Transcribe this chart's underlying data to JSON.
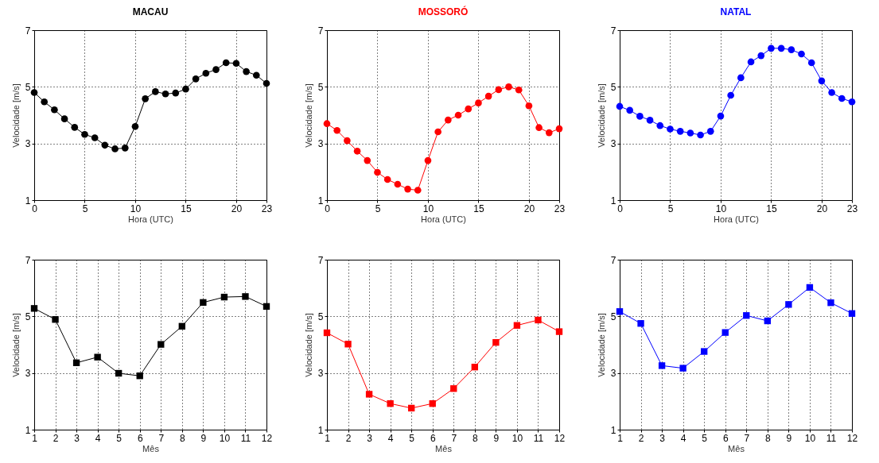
{
  "chart_data": [
    {
      "type": "line",
      "title": "MACAU",
      "xlabel": "Hora (UTC)",
      "ylabel": "Velocidade [m/s]",
      "x": [
        0,
        1,
        2,
        3,
        4,
        5,
        6,
        7,
        8,
        9,
        10,
        11,
        12,
        13,
        14,
        15,
        16,
        17,
        18,
        19,
        20,
        21,
        22,
        23
      ],
      "series": [
        {
          "color": "#000000",
          "values": [
            4.8,
            4.47,
            4.19,
            3.87,
            3.57,
            3.32,
            3.2,
            2.94,
            2.81,
            2.84,
            3.6,
            4.58,
            4.83,
            4.75,
            4.78,
            4.92,
            5.28,
            5.48,
            5.61,
            5.85,
            5.83,
            5.54,
            5.41,
            5.12
          ]
        }
      ],
      "xlim": [
        0,
        23
      ],
      "xticks": [
        0,
        5,
        10,
        15,
        20,
        23
      ],
      "ylim": [
        1,
        7
      ],
      "yticks": [
        1,
        3,
        5,
        7
      ],
      "grid": true,
      "marker": "circle"
    },
    {
      "type": "line",
      "title": "MOSSORÓ",
      "xlabel": "Hora (UTC)",
      "ylabel": "Velocidade [m/s]",
      "x": [
        0,
        1,
        2,
        3,
        4,
        5,
        6,
        7,
        8,
        9,
        10,
        11,
        12,
        13,
        14,
        15,
        16,
        17,
        18,
        19,
        20,
        21,
        22,
        23
      ],
      "series": [
        {
          "color": "#ff0000",
          "values": [
            3.7,
            3.46,
            3.1,
            2.73,
            2.4,
            1.98,
            1.73,
            1.56,
            1.39,
            1.35,
            2.4,
            3.41,
            3.83,
            4.0,
            4.22,
            4.43,
            4.67,
            4.9,
            5.0,
            4.89,
            4.33,
            3.56,
            3.38,
            3.52
          ]
        }
      ],
      "xlim": [
        0,
        23
      ],
      "xticks": [
        0,
        5,
        10,
        15,
        20,
        23
      ],
      "ylim": [
        1,
        7
      ],
      "yticks": [
        1,
        3,
        5,
        7
      ],
      "grid": true,
      "marker": "circle"
    },
    {
      "type": "line",
      "title": "NATAL",
      "xlabel": "Hora (UTC)",
      "ylabel": "Velocidade [m/s]",
      "x": [
        0,
        1,
        2,
        3,
        4,
        5,
        6,
        7,
        8,
        9,
        10,
        11,
        12,
        13,
        14,
        15,
        16,
        17,
        18,
        19,
        20,
        21,
        22,
        23
      ],
      "series": [
        {
          "color": "#0000ff",
          "values": [
            4.31,
            4.17,
            3.96,
            3.82,
            3.63,
            3.51,
            3.43,
            3.37,
            3.3,
            3.43,
            3.97,
            4.7,
            5.32,
            5.88,
            6.1,
            6.36,
            6.36,
            6.31,
            6.16,
            5.85,
            5.21,
            4.8,
            4.59,
            4.47
          ]
        }
      ],
      "xlim": [
        0,
        23
      ],
      "xticks": [
        0,
        5,
        10,
        15,
        20,
        23
      ],
      "ylim": [
        1,
        7
      ],
      "yticks": [
        1,
        3,
        5,
        7
      ],
      "grid": true,
      "marker": "circle"
    },
    {
      "type": "line",
      "xlabel": "Mês",
      "ylabel": "Velocidade [m/s]",
      "x": [
        1,
        2,
        3,
        4,
        5,
        6,
        7,
        8,
        9,
        10,
        11,
        12
      ],
      "series": [
        {
          "color": "#000000",
          "values": [
            5.28,
            4.89,
            3.36,
            3.56,
            2.99,
            2.9,
            4.01,
            4.65,
            5.49,
            5.68,
            5.7,
            5.35
          ]
        }
      ],
      "xlim": [
        1,
        12
      ],
      "xticks": [
        1,
        2,
        3,
        4,
        5,
        6,
        7,
        8,
        9,
        10,
        11,
        12
      ],
      "ylim": [
        1,
        7
      ],
      "yticks": [
        1,
        3,
        5,
        7
      ],
      "grid": true,
      "marker": "square"
    },
    {
      "type": "line",
      "xlabel": "Mês",
      "ylabel": "Velocidade [m/s]",
      "x": [
        1,
        2,
        3,
        4,
        5,
        6,
        7,
        8,
        9,
        10,
        11,
        12
      ],
      "series": [
        {
          "color": "#ff0000",
          "values": [
            4.42,
            4.02,
            2.25,
            1.92,
            1.76,
            1.92,
            2.45,
            3.21,
            4.08,
            4.68,
            4.87,
            4.46
          ]
        }
      ],
      "xlim": [
        1,
        12
      ],
      "xticks": [
        1,
        2,
        3,
        4,
        5,
        6,
        7,
        8,
        9,
        10,
        11,
        12
      ],
      "ylim": [
        1,
        7
      ],
      "yticks": [
        1,
        3,
        5,
        7
      ],
      "grid": true,
      "marker": "square"
    },
    {
      "type": "line",
      "xlabel": "Mês",
      "ylabel": "Velocidade [m/s]",
      "x": [
        1,
        2,
        3,
        4,
        5,
        6,
        7,
        8,
        9,
        10,
        11,
        12
      ],
      "series": [
        {
          "color": "#0000ff",
          "values": [
            5.17,
            4.75,
            3.26,
            3.17,
            3.76,
            4.43,
            5.03,
            4.84,
            5.42,
            6.02,
            5.48,
            5.1
          ]
        }
      ],
      "xlim": [
        1,
        12
      ],
      "xticks": [
        1,
        2,
        3,
        4,
        5,
        6,
        7,
        8,
        9,
        10,
        11,
        12
      ],
      "ylim": [
        1,
        7
      ],
      "yticks": [
        1,
        3,
        5,
        7
      ],
      "grid": true,
      "marker": "square"
    }
  ]
}
